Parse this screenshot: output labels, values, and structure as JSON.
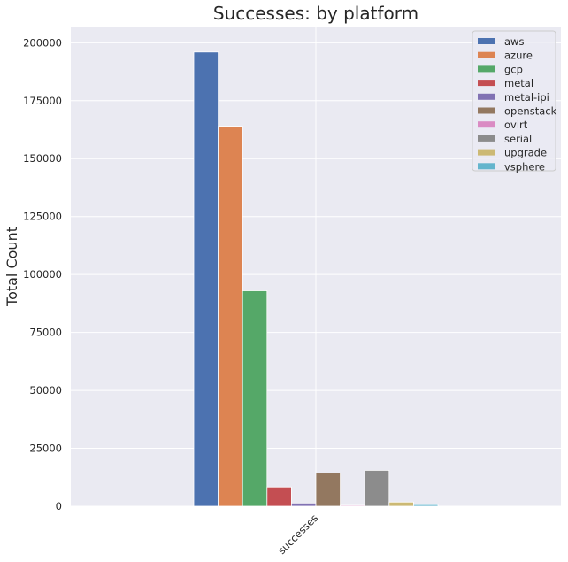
{
  "chart_data": {
    "type": "bar",
    "title": "Successes: by platform",
    "xlabel": "",
    "ylabel": "Total Count",
    "categories": [
      "successes"
    ],
    "ylim": [
      0,
      207000
    ],
    "yticks": [
      0,
      25000,
      50000,
      75000,
      100000,
      125000,
      150000,
      175000,
      200000
    ],
    "grid": true,
    "legend_position": "top-right",
    "series": [
      {
        "name": "aws",
        "color": "#4c72b0",
        "values": [
          196000
        ]
      },
      {
        "name": "azure",
        "color": "#dd8452",
        "values": [
          164000
        ]
      },
      {
        "name": "gcp",
        "color": "#55a868",
        "values": [
          93000
        ]
      },
      {
        "name": "metal",
        "color": "#c44e52",
        "values": [
          8300
        ]
      },
      {
        "name": "metal-ipi",
        "color": "#8172b3",
        "values": [
          1400
        ]
      },
      {
        "name": "openstack",
        "color": "#937860",
        "values": [
          14300
        ]
      },
      {
        "name": "ovirt",
        "color": "#da8bc3",
        "values": [
          400
        ]
      },
      {
        "name": "serial",
        "color": "#8c8c8c",
        "values": [
          15500
        ]
      },
      {
        "name": "upgrade",
        "color": "#ccb974",
        "values": [
          1800
        ]
      },
      {
        "name": "vsphere",
        "color": "#64b5cd",
        "values": [
          700
        ]
      }
    ]
  }
}
